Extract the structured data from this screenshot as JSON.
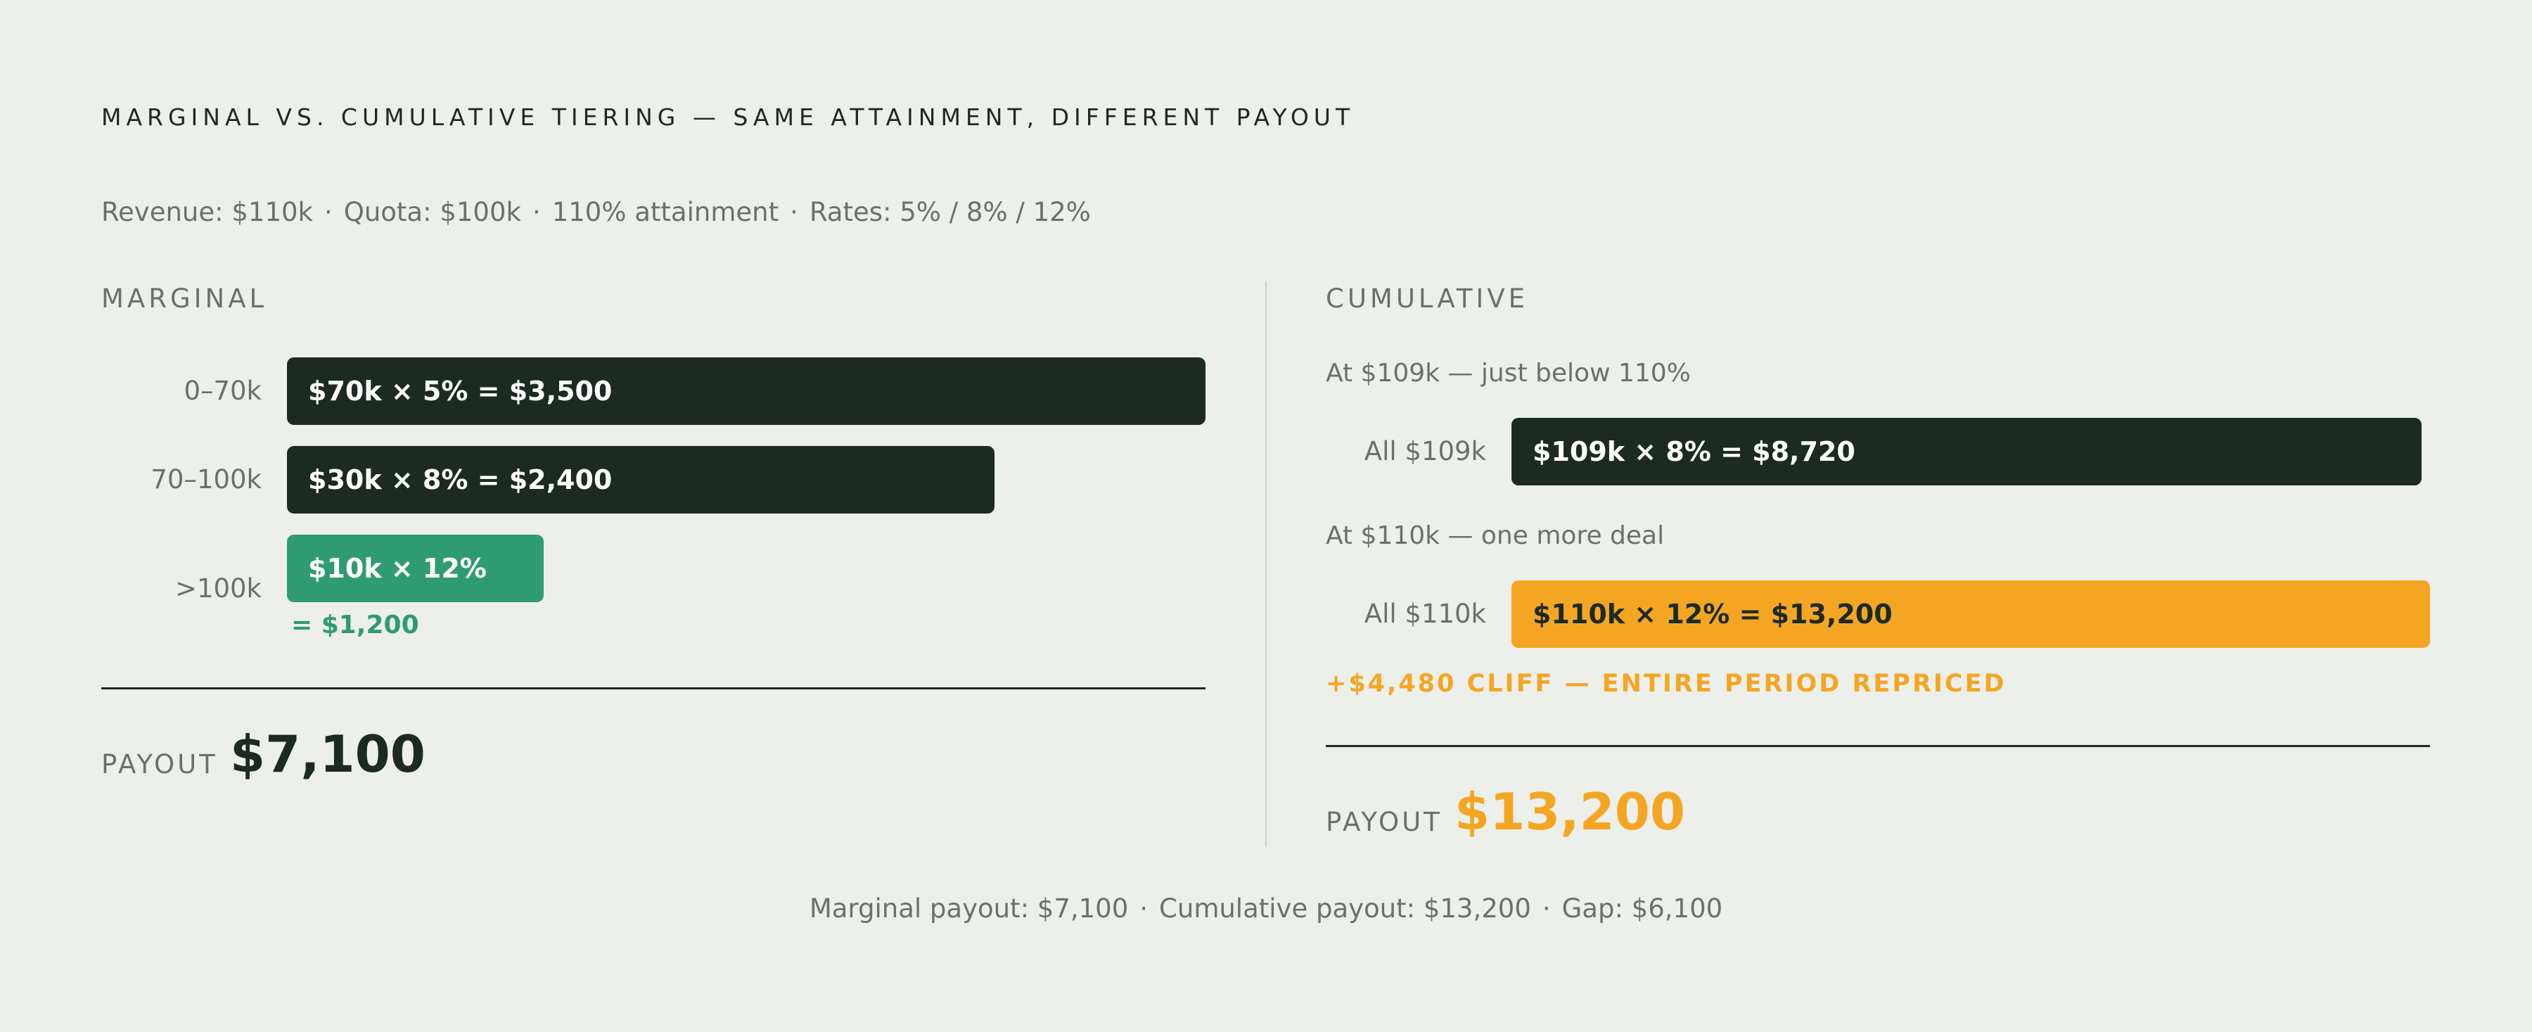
{
  "title": "MARGINAL VS. CUMULATIVE TIERING — SAME ATTAINMENT, DIFFERENT PAYOUT",
  "subtitle": {
    "revenue": "Revenue: $110k",
    "quota": "Quota: $100k",
    "attainment": "110% attainment",
    "rates": "Rates: 5% / 8% / 12%",
    "separator": "·"
  },
  "marginal": {
    "heading": "MARGINAL",
    "tiers": [
      {
        "label": "0–70k",
        "text": "$70k × 5% = $3,500",
        "value": 3500
      },
      {
        "label": "70–100k",
        "text": "$30k × 8% = $2,400",
        "value": 2400
      },
      {
        "label": ">100k",
        "text": "$10k × 12%",
        "value": 1200,
        "note": "= $1,200"
      }
    ],
    "payout_label": "PAYOUT",
    "payout_value": "$7,100"
  },
  "cumulative": {
    "heading": "CUMULATIVE",
    "scenarios": [
      {
        "caption": "At $109k — just below 110%",
        "label": "All $109k",
        "text": "$109k × 8% = $8,720",
        "value": 8720
      },
      {
        "caption": "At $110k — one more deal",
        "label": "All $110k",
        "text": "$110k × 12% = $13,200",
        "value": 13200
      }
    ],
    "cliff": "+$4,480 CLIFF — ENTIRE PERIOD REPRICED",
    "payout_label": "PAYOUT",
    "payout_value": "$13,200"
  },
  "footer": {
    "marginal": "Marginal payout: $7,100",
    "cumulative": "Cumulative payout: $13,200",
    "gap": "Gap: $6,100",
    "separator": "·"
  },
  "colors": {
    "background": "#edefea",
    "dark": "#1c2a22",
    "green": "#2f9b73",
    "amber": "#f4a623",
    "muted": "#6a716c"
  }
}
